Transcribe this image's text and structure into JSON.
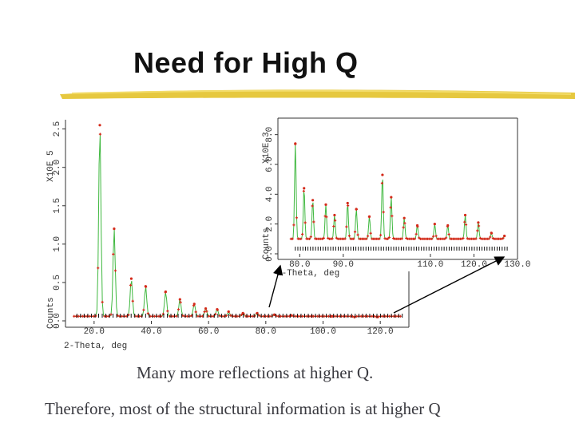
{
  "title": "Need for High Q",
  "caption_line1": "Many more reflections at higher Q.",
  "caption_line2": "Therefore, most of the structural information is at higher Q",
  "colors": {
    "observed": "#d42a1a",
    "calculated": "#3fb83f",
    "reflection_ticks": "#111111",
    "title_rule": "#e3c22a"
  },
  "chart_data": [
    {
      "type": "scatter",
      "name": "main",
      "xlabel": "2-Theta, deg",
      "ylabel": "Counts",
      "scale_label": "X10E 5",
      "x_ticks": [
        "20.0",
        "40.0",
        "60.0",
        "80.0",
        "100.0",
        "120.0"
      ],
      "y_ticks": [
        "0.0",
        "0.5",
        "1.0",
        "1.5",
        "2.0",
        "2.5"
      ],
      "xlim": [
        10,
        130
      ],
      "ylim": [
        0,
        2.6
      ],
      "peaks_x": [
        22,
        27,
        33,
        38,
        45,
        50,
        55,
        59,
        63,
        67,
        72,
        77,
        83,
        89,
        96,
        103,
        111,
        119
      ],
      "peaks_y": [
        2.55,
        1.2,
        0.55,
        0.45,
        0.38,
        0.28,
        0.22,
        0.16,
        0.15,
        0.12,
        0.1,
        0.1,
        0.08,
        0.07,
        0.06,
        0.06,
        0.05,
        0.05
      ],
      "baseline": 0.06
    },
    {
      "type": "scatter",
      "name": "inset",
      "xlabel": "2-Theta, deg",
      "ylabel": "Counts",
      "scale_label": "X10E 3",
      "x_ticks": [
        "80.0",
        "90.0",
        "110.0",
        "120.0",
        "130.0"
      ],
      "y_ticks": [
        "0.0",
        "2.0",
        "4.0",
        "6.0",
        "8.0"
      ],
      "xlim": [
        75,
        130
      ],
      "ylim": [
        0,
        9
      ],
      "peaks_x": [
        79,
        81,
        83,
        86,
        88,
        91,
        93,
        96,
        99,
        101,
        104,
        107,
        111,
        114,
        118,
        121,
        124,
        127
      ],
      "peaks_y": [
        7.4,
        4.4,
        3.6,
        3.3,
        2.6,
        3.4,
        3.0,
        2.5,
        5.3,
        3.8,
        2.4,
        1.9,
        2.0,
        1.9,
        2.6,
        2.1,
        1.4,
        1.2
      ],
      "baseline": 1.0
    }
  ]
}
